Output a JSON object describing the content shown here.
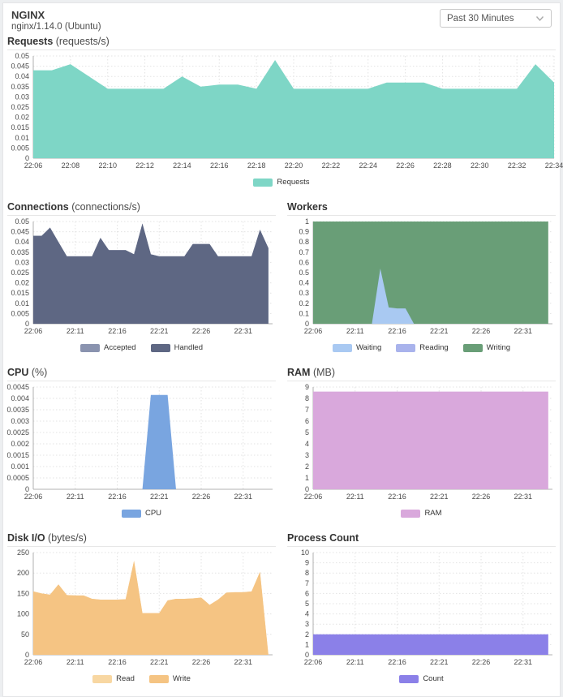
{
  "header": {
    "title": "NGINX",
    "subtitle": "nginx/1.14.0 (Ubuntu)",
    "time_range": "Past 30 Minutes"
  },
  "chart_data": [
    {
      "id": "requests",
      "type": "area",
      "title": "Requests",
      "unit": "(requests/s)",
      "full_width": true,
      "ylim": [
        0,
        0.05
      ],
      "xmax": 28,
      "x_unit_minutes_from": "22:06",
      "y_ticks": [
        {
          "v": 0.05,
          "l": "0.05"
        },
        {
          "v": 0.045,
          "l": "0.045"
        },
        {
          "v": 0.04,
          "l": "0.04"
        },
        {
          "v": 0.035,
          "l": "0.035"
        },
        {
          "v": 0.03,
          "l": "0.03"
        },
        {
          "v": 0.025,
          "l": "0.025"
        },
        {
          "v": 0.02,
          "l": "0.02"
        },
        {
          "v": 0.015,
          "l": "0.015"
        },
        {
          "v": 0.01,
          "l": "0.01"
        },
        {
          "v": 0.005,
          "l": "0.005"
        },
        {
          "v": 0,
          "l": "0"
        }
      ],
      "x_ticks": [
        {
          "t": 0,
          "l": "22:06"
        },
        {
          "t": 2,
          "l": "22:08"
        },
        {
          "t": 4,
          "l": "22:10"
        },
        {
          "t": 6,
          "l": "22:12"
        },
        {
          "t": 8,
          "l": "22:14"
        },
        {
          "t": 10,
          "l": "22:16"
        },
        {
          "t": 12,
          "l": "22:18"
        },
        {
          "t": 14,
          "l": "22:20"
        },
        {
          "t": 16,
          "l": "22:22"
        },
        {
          "t": 18,
          "l": "22:24"
        },
        {
          "t": 20,
          "l": "22:26"
        },
        {
          "t": 22,
          "l": "22:28"
        },
        {
          "t": 24,
          "l": "22:30"
        },
        {
          "t": 26,
          "l": "22:32"
        },
        {
          "t": 28,
          "l": "22:34"
        }
      ],
      "series": [
        {
          "name": "Requests",
          "color": "#7ed6c6",
          "values": [
            0.043,
            0.043,
            0.046,
            0.04,
            0.034,
            0.034,
            0.034,
            0.034,
            0.04,
            0.035,
            0.036,
            0.036,
            0.034,
            0.048,
            0.034,
            0.034,
            0.034,
            0.034,
            0.034,
            0.037,
            0.037,
            0.037,
            0.034,
            0.034,
            0.034,
            0.034,
            0.034,
            0.046,
            0.037
          ]
        }
      ]
    },
    {
      "id": "connections",
      "type": "area",
      "title": "Connections",
      "unit": "(connections/s)",
      "full_width": false,
      "ylim": [
        0,
        0.05
      ],
      "xmax": 28.5,
      "x_unit_minutes_from": "22:06",
      "y_ticks": [
        {
          "v": 0.05,
          "l": "0.05"
        },
        {
          "v": 0.045,
          "l": "0.045"
        },
        {
          "v": 0.04,
          "l": "0.04"
        },
        {
          "v": 0.035,
          "l": "0.035"
        },
        {
          "v": 0.03,
          "l": "0.03"
        },
        {
          "v": 0.025,
          "l": "0.025"
        },
        {
          "v": 0.02,
          "l": "0.02"
        },
        {
          "v": 0.015,
          "l": "0.015"
        },
        {
          "v": 0.01,
          "l": "0.01"
        },
        {
          "v": 0.005,
          "l": "0.005"
        },
        {
          "v": 0,
          "l": "0"
        }
      ],
      "x_ticks": [
        {
          "t": 0,
          "l": "22:06"
        },
        {
          "t": 5,
          "l": "22:11"
        },
        {
          "t": 10,
          "l": "22:16"
        },
        {
          "t": 15,
          "l": "22:21"
        },
        {
          "t": 20,
          "l": "22:26"
        },
        {
          "t": 25,
          "l": "22:31"
        }
      ],
      "series": [
        {
          "name": "Accepted",
          "color": "#8a93af",
          "values": [
            0.043,
            0.043,
            0.047,
            0.04,
            0.033,
            0.033,
            0.033,
            0.033,
            0.042,
            0.036,
            0.036,
            0.036,
            0.034,
            0.049,
            0.034,
            0.033,
            0.033,
            0.033,
            0.033,
            0.039,
            0.039,
            0.039,
            0.033,
            0.033,
            0.033,
            0.033,
            0.033,
            0.046,
            0.037
          ]
        },
        {
          "name": "Handled",
          "color": "#5e6783",
          "values": [
            0.043,
            0.043,
            0.047,
            0.04,
            0.033,
            0.033,
            0.033,
            0.033,
            0.042,
            0.036,
            0.036,
            0.036,
            0.034,
            0.049,
            0.034,
            0.033,
            0.033,
            0.033,
            0.033,
            0.039,
            0.039,
            0.039,
            0.033,
            0.033,
            0.033,
            0.033,
            0.033,
            0.046,
            0.037
          ]
        }
      ]
    },
    {
      "id": "workers",
      "type": "area",
      "title": "Workers",
      "unit": "",
      "full_width": false,
      "draw_reversed": true,
      "ylim": [
        0,
        1
      ],
      "xmax": 28.5,
      "x_unit_minutes_from": "22:06",
      "y_ticks": [
        {
          "v": 1,
          "l": "1"
        },
        {
          "v": 0.9,
          "l": "0.9"
        },
        {
          "v": 0.8,
          "l": "0.8"
        },
        {
          "v": 0.7,
          "l": "0.7"
        },
        {
          "v": 0.6,
          "l": "0.6"
        },
        {
          "v": 0.5,
          "l": "0.5"
        },
        {
          "v": 0.4,
          "l": "0.4"
        },
        {
          "v": 0.3,
          "l": "0.3"
        },
        {
          "v": 0.2,
          "l": "0.2"
        },
        {
          "v": 0.1,
          "l": "0.1"
        },
        {
          "v": 0,
          "l": "0"
        }
      ],
      "x_ticks": [
        {
          "t": 0,
          "l": "22:06"
        },
        {
          "t": 5,
          "l": "22:11"
        },
        {
          "t": 10,
          "l": "22:16"
        },
        {
          "t": 15,
          "l": "22:21"
        },
        {
          "t": 20,
          "l": "22:26"
        },
        {
          "t": 25,
          "l": "22:31"
        }
      ],
      "series": [
        {
          "name": "Waiting",
          "color": "#a9c9f2",
          "values": [
            0,
            0,
            0,
            0,
            0,
            0,
            0,
            0,
            0.54,
            0.16,
            0.15,
            0.15,
            0,
            0,
            0,
            0,
            0,
            0,
            0,
            0,
            0,
            0,
            0,
            0,
            0,
            0,
            0,
            0,
            0
          ]
        },
        {
          "name": "Reading",
          "color": "#a9b3ec",
          "values": [
            0,
            0,
            0,
            0,
            0,
            0,
            0,
            0,
            0,
            0,
            0,
            0,
            0,
            0,
            0,
            0,
            0,
            0,
            0,
            0,
            0,
            0,
            0,
            0,
            0,
            0,
            0,
            0,
            0
          ]
        },
        {
          "name": "Writing",
          "color": "#699e77",
          "values": [
            1,
            1,
            1,
            1,
            1,
            1,
            1,
            1,
            1,
            1,
            1,
            1,
            1,
            1,
            1,
            1,
            1,
            1,
            1,
            1,
            1,
            1,
            1,
            1,
            1,
            1,
            1,
            1,
            1
          ]
        }
      ]
    },
    {
      "id": "cpu",
      "type": "area",
      "title": "CPU",
      "unit": "(%)",
      "full_width": false,
      "ylim": [
        0,
        0.0045
      ],
      "xmax": 28.5,
      "x_unit_minutes_from": "22:06",
      "y_ticks": [
        {
          "v": 0.0045,
          "l": "0.0045"
        },
        {
          "v": 0.004,
          "l": "0.004"
        },
        {
          "v": 0.0035,
          "l": "0.0035"
        },
        {
          "v": 0.003,
          "l": "0.003"
        },
        {
          "v": 0.0025,
          "l": "0.0025"
        },
        {
          "v": 0.002,
          "l": "0.002"
        },
        {
          "v": 0.0015,
          "l": "0.0015"
        },
        {
          "v": 0.001,
          "l": "0.001"
        },
        {
          "v": 0.0005,
          "l": "0.0005"
        },
        {
          "v": 0,
          "l": "0"
        }
      ],
      "x_ticks": [
        {
          "t": 0,
          "l": "22:06"
        },
        {
          "t": 5,
          "l": "22:11"
        },
        {
          "t": 10,
          "l": "22:16"
        },
        {
          "t": 15,
          "l": "22:21"
        },
        {
          "t": 20,
          "l": "22:26"
        },
        {
          "t": 25,
          "l": "22:31"
        }
      ],
      "series": [
        {
          "name": "CPU",
          "color": "#79a5e0",
          "values": [
            0,
            0,
            0,
            0,
            0,
            0,
            0,
            0,
            0,
            0,
            0,
            0,
            0,
            0,
            0.00415,
            0.00415,
            0.00415,
            0,
            0,
            0,
            0,
            0,
            0,
            0,
            0,
            0,
            0,
            0,
            0
          ]
        }
      ]
    },
    {
      "id": "ram",
      "type": "area",
      "title": "RAM",
      "unit": "(MB)",
      "full_width": false,
      "ylim": [
        0,
        9
      ],
      "xmax": 28.5,
      "x_unit_minutes_from": "22:06",
      "y_ticks": [
        {
          "v": 9,
          "l": "9"
        },
        {
          "v": 8,
          "l": "8"
        },
        {
          "v": 7,
          "l": "7"
        },
        {
          "v": 6,
          "l": "6"
        },
        {
          "v": 5,
          "l": "5"
        },
        {
          "v": 4,
          "l": "4"
        },
        {
          "v": 3,
          "l": "3"
        },
        {
          "v": 2,
          "l": "2"
        },
        {
          "v": 1,
          "l": "1"
        },
        {
          "v": 0,
          "l": "0"
        }
      ],
      "x_ticks": [
        {
          "t": 0,
          "l": "22:06"
        },
        {
          "t": 5,
          "l": "22:11"
        },
        {
          "t": 10,
          "l": "22:16"
        },
        {
          "t": 15,
          "l": "22:21"
        },
        {
          "t": 20,
          "l": "22:26"
        },
        {
          "t": 25,
          "l": "22:31"
        }
      ],
      "series": [
        {
          "name": "RAM",
          "color": "#d9a8dc",
          "values": [
            8.6,
            8.6,
            8.6,
            8.6,
            8.6,
            8.6,
            8.6,
            8.6,
            8.6,
            8.6,
            8.6,
            8.6,
            8.6,
            8.6,
            8.6,
            8.6,
            8.6,
            8.6,
            8.6,
            8.6,
            8.6,
            8.6,
            8.6,
            8.6,
            8.6,
            8.6,
            8.6,
            8.6,
            8.6
          ]
        }
      ]
    },
    {
      "id": "disk",
      "type": "area",
      "title": "Disk I/O",
      "unit": "(bytes/s)",
      "full_width": false,
      "ylim": [
        0,
        250
      ],
      "xmax": 28.5,
      "x_unit_minutes_from": "22:06",
      "y_ticks": [
        {
          "v": 250,
          "l": "250"
        },
        {
          "v": 200,
          "l": "200"
        },
        {
          "v": 150,
          "l": "150"
        },
        {
          "v": 100,
          "l": "100"
        },
        {
          "v": 50,
          "l": "50"
        },
        {
          "v": 0,
          "l": "0"
        }
      ],
      "x_ticks": [
        {
          "t": 0,
          "l": "22:06"
        },
        {
          "t": 5,
          "l": "22:11"
        },
        {
          "t": 10,
          "l": "22:16"
        },
        {
          "t": 15,
          "l": "22:21"
        },
        {
          "t": 20,
          "l": "22:26"
        },
        {
          "t": 25,
          "l": "22:31"
        }
      ],
      "series": [
        {
          "name": "Read",
          "color": "#f8d7a2",
          "values": [
            155,
            150,
            147,
            172,
            146,
            145,
            145,
            137,
            135,
            135,
            135,
            136,
            230,
            102,
            102,
            102,
            133,
            137,
            137,
            138,
            140,
            122,
            135,
            152,
            153,
            153,
            155,
            203,
            0
          ]
        },
        {
          "name": "Write",
          "color": "#f5c483",
          "values": [
            155,
            150,
            147,
            172,
            146,
            145,
            145,
            137,
            135,
            135,
            135,
            136,
            230,
            102,
            102,
            102,
            133,
            137,
            137,
            138,
            140,
            122,
            135,
            152,
            153,
            153,
            155,
            203,
            0
          ]
        }
      ]
    },
    {
      "id": "process",
      "type": "area",
      "title": "Process Count",
      "unit": "",
      "full_width": false,
      "ylim": [
        0,
        10
      ],
      "xmax": 28.5,
      "x_unit_minutes_from": "22:06",
      "y_ticks": [
        {
          "v": 10,
          "l": "10"
        },
        {
          "v": 9,
          "l": "9"
        },
        {
          "v": 8,
          "l": "8"
        },
        {
          "v": 7,
          "l": "7"
        },
        {
          "v": 6,
          "l": "6"
        },
        {
          "v": 5,
          "l": "5"
        },
        {
          "v": 4,
          "l": "4"
        },
        {
          "v": 3,
          "l": "3"
        },
        {
          "v": 2,
          "l": "2"
        },
        {
          "v": 1,
          "l": "1"
        },
        {
          "v": 0,
          "l": "0"
        }
      ],
      "x_ticks": [
        {
          "t": 0,
          "l": "22:06"
        },
        {
          "t": 5,
          "l": "22:11"
        },
        {
          "t": 10,
          "l": "22:16"
        },
        {
          "t": 15,
          "l": "22:21"
        },
        {
          "t": 20,
          "l": "22:26"
        },
        {
          "t": 25,
          "l": "22:31"
        }
      ],
      "series": [
        {
          "name": "Count",
          "color": "#8b80e8",
          "values": [
            2,
            2,
            2,
            2,
            2,
            2,
            2,
            2,
            2,
            2,
            2,
            2,
            2,
            2,
            2,
            2,
            2,
            2,
            2,
            2,
            2,
            2,
            2,
            2,
            2,
            2,
            2,
            2,
            2
          ]
        }
      ]
    }
  ]
}
